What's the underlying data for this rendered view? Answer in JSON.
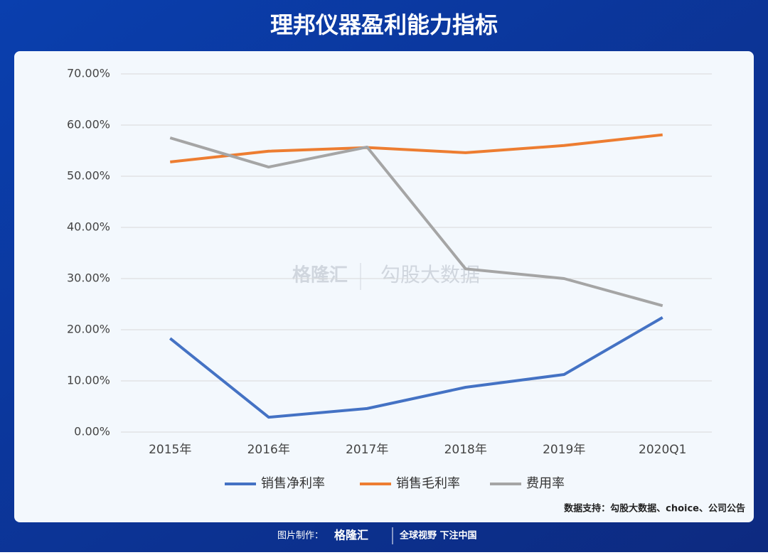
{
  "chart_data": {
    "type": "line",
    "title": "理邦仪器盈利能力指标",
    "categories": [
      "2015年",
      "2016年",
      "2017年",
      "2018年",
      "2019年",
      "2020Q1"
    ],
    "series": [
      {
        "name": "销售净利率",
        "color": "#4472c4",
        "values": [
          18.3,
          2.9,
          4.6,
          8.75,
          11.25,
          22.4
        ]
      },
      {
        "name": "销售毛利率",
        "color": "#ed7d31",
        "values": [
          52.8,
          54.9,
          55.6,
          54.6,
          56.0,
          58.1
        ]
      },
      {
        "name": "费用率",
        "color": "#a5a5a5",
        "values": [
          57.5,
          51.8,
          55.7,
          31.9,
          30.0,
          24.7
        ]
      }
    ],
    "ylim": [
      0,
      70
    ],
    "yticks": [
      {
        "value": 0,
        "label": "0.00%"
      },
      {
        "value": 10,
        "label": "10.00%"
      },
      {
        "value": 20,
        "label": "20.00%"
      },
      {
        "value": 30,
        "label": "30.00%"
      },
      {
        "value": 40,
        "label": "40.00%"
      },
      {
        "value": 50,
        "label": "50.00%"
      },
      {
        "value": 60,
        "label": "60.00%"
      },
      {
        "value": 70,
        "label": "70.00%"
      }
    ],
    "grid": true,
    "legend": "bottom",
    "watermark": [
      "格隆汇",
      "勾股大数据"
    ],
    "source": "数据支持：勾股大数据、choice、公司公告"
  },
  "footer": {
    "label": "图片制作：",
    "brand": "格隆汇",
    "slogan": "全球视野 下注中国"
  }
}
